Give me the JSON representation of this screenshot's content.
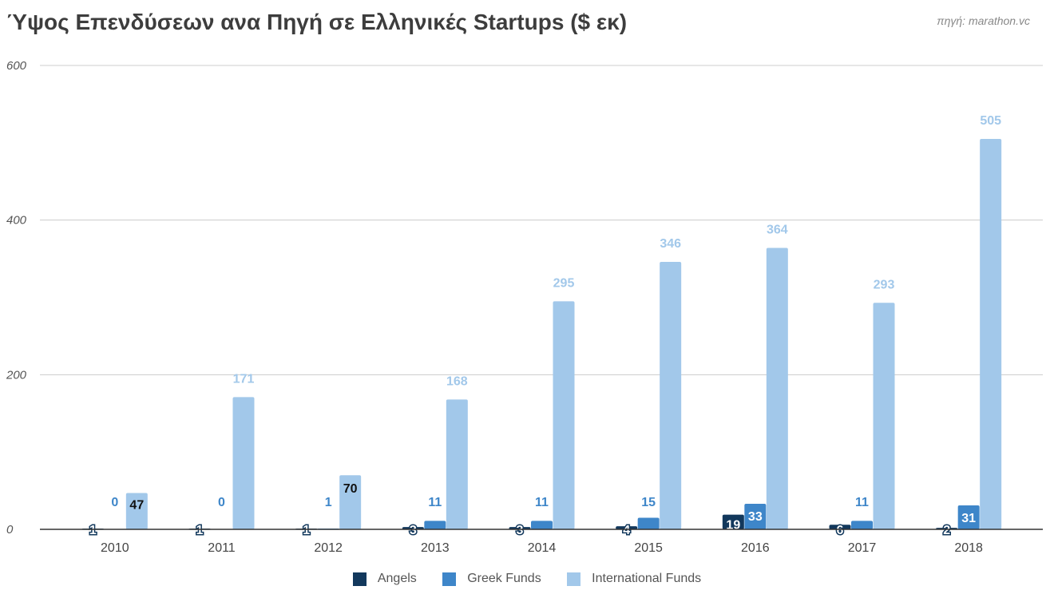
{
  "title": "Ύψος Επενδύσεων ανα Πηγή σε Ελληνικές Startups ($ εκ)",
  "source": "πηγή: marathon.vc",
  "colors": {
    "angels": "#12385c",
    "greek": "#3e86c9",
    "international": "#a2c8ea",
    "grid": "#cccccc",
    "axis": "#333333"
  },
  "chart_data": {
    "type": "bar",
    "title": "Ύψος Επενδύσεων ανα Πηγή σε Ελληνικές Startups ($ εκ)",
    "xlabel": "",
    "ylabel": "",
    "ylim": [
      0,
      600
    ],
    "yticks": [
      0,
      200,
      400,
      600
    ],
    "grid": true,
    "legend": "bottom",
    "categories": [
      "2010",
      "2011",
      "2012",
      "2013",
      "2014",
      "2015",
      "2016",
      "2017",
      "2018"
    ],
    "series": [
      {
        "name": "Angels",
        "values": [
          1,
          1,
          1,
          3,
          3,
          4,
          19,
          6,
          2
        ]
      },
      {
        "name": "Greek Funds",
        "values": [
          0,
          0,
          1,
          11,
          11,
          15,
          33,
          11,
          31
        ]
      },
      {
        "name": "International Funds",
        "values": [
          47,
          171,
          70,
          168,
          295,
          346,
          364,
          293,
          505
        ]
      }
    ]
  }
}
